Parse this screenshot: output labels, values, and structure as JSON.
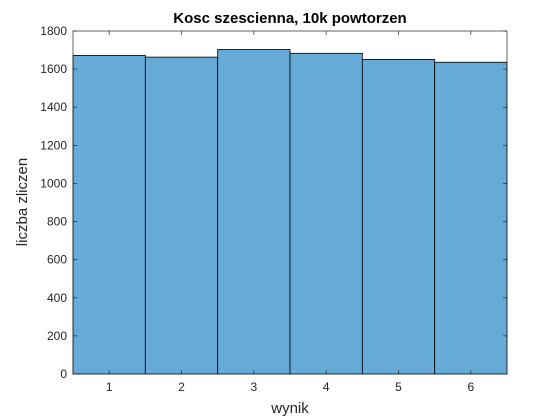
{
  "chart_data": {
    "type": "bar",
    "title": "Kosc szescienna, 10k powtorzen",
    "xlabel": "wynik",
    "ylabel": "liczba zliczen",
    "categories": [
      "1",
      "2",
      "3",
      "4",
      "5",
      "6"
    ],
    "values": [
      1672,
      1663,
      1703,
      1683,
      1651,
      1636
    ],
    "xlim": [
      0.5,
      6.5
    ],
    "ylim": [
      0,
      1800
    ],
    "xticks": [
      1,
      2,
      3,
      4,
      5,
      6
    ],
    "yticks": [
      0,
      200,
      400,
      600,
      800,
      1000,
      1200,
      1400,
      1600,
      1800
    ],
    "grid": false,
    "bar_color": "#66aad7",
    "bar_edge_color": "#000000",
    "axes_color": "#262626"
  }
}
